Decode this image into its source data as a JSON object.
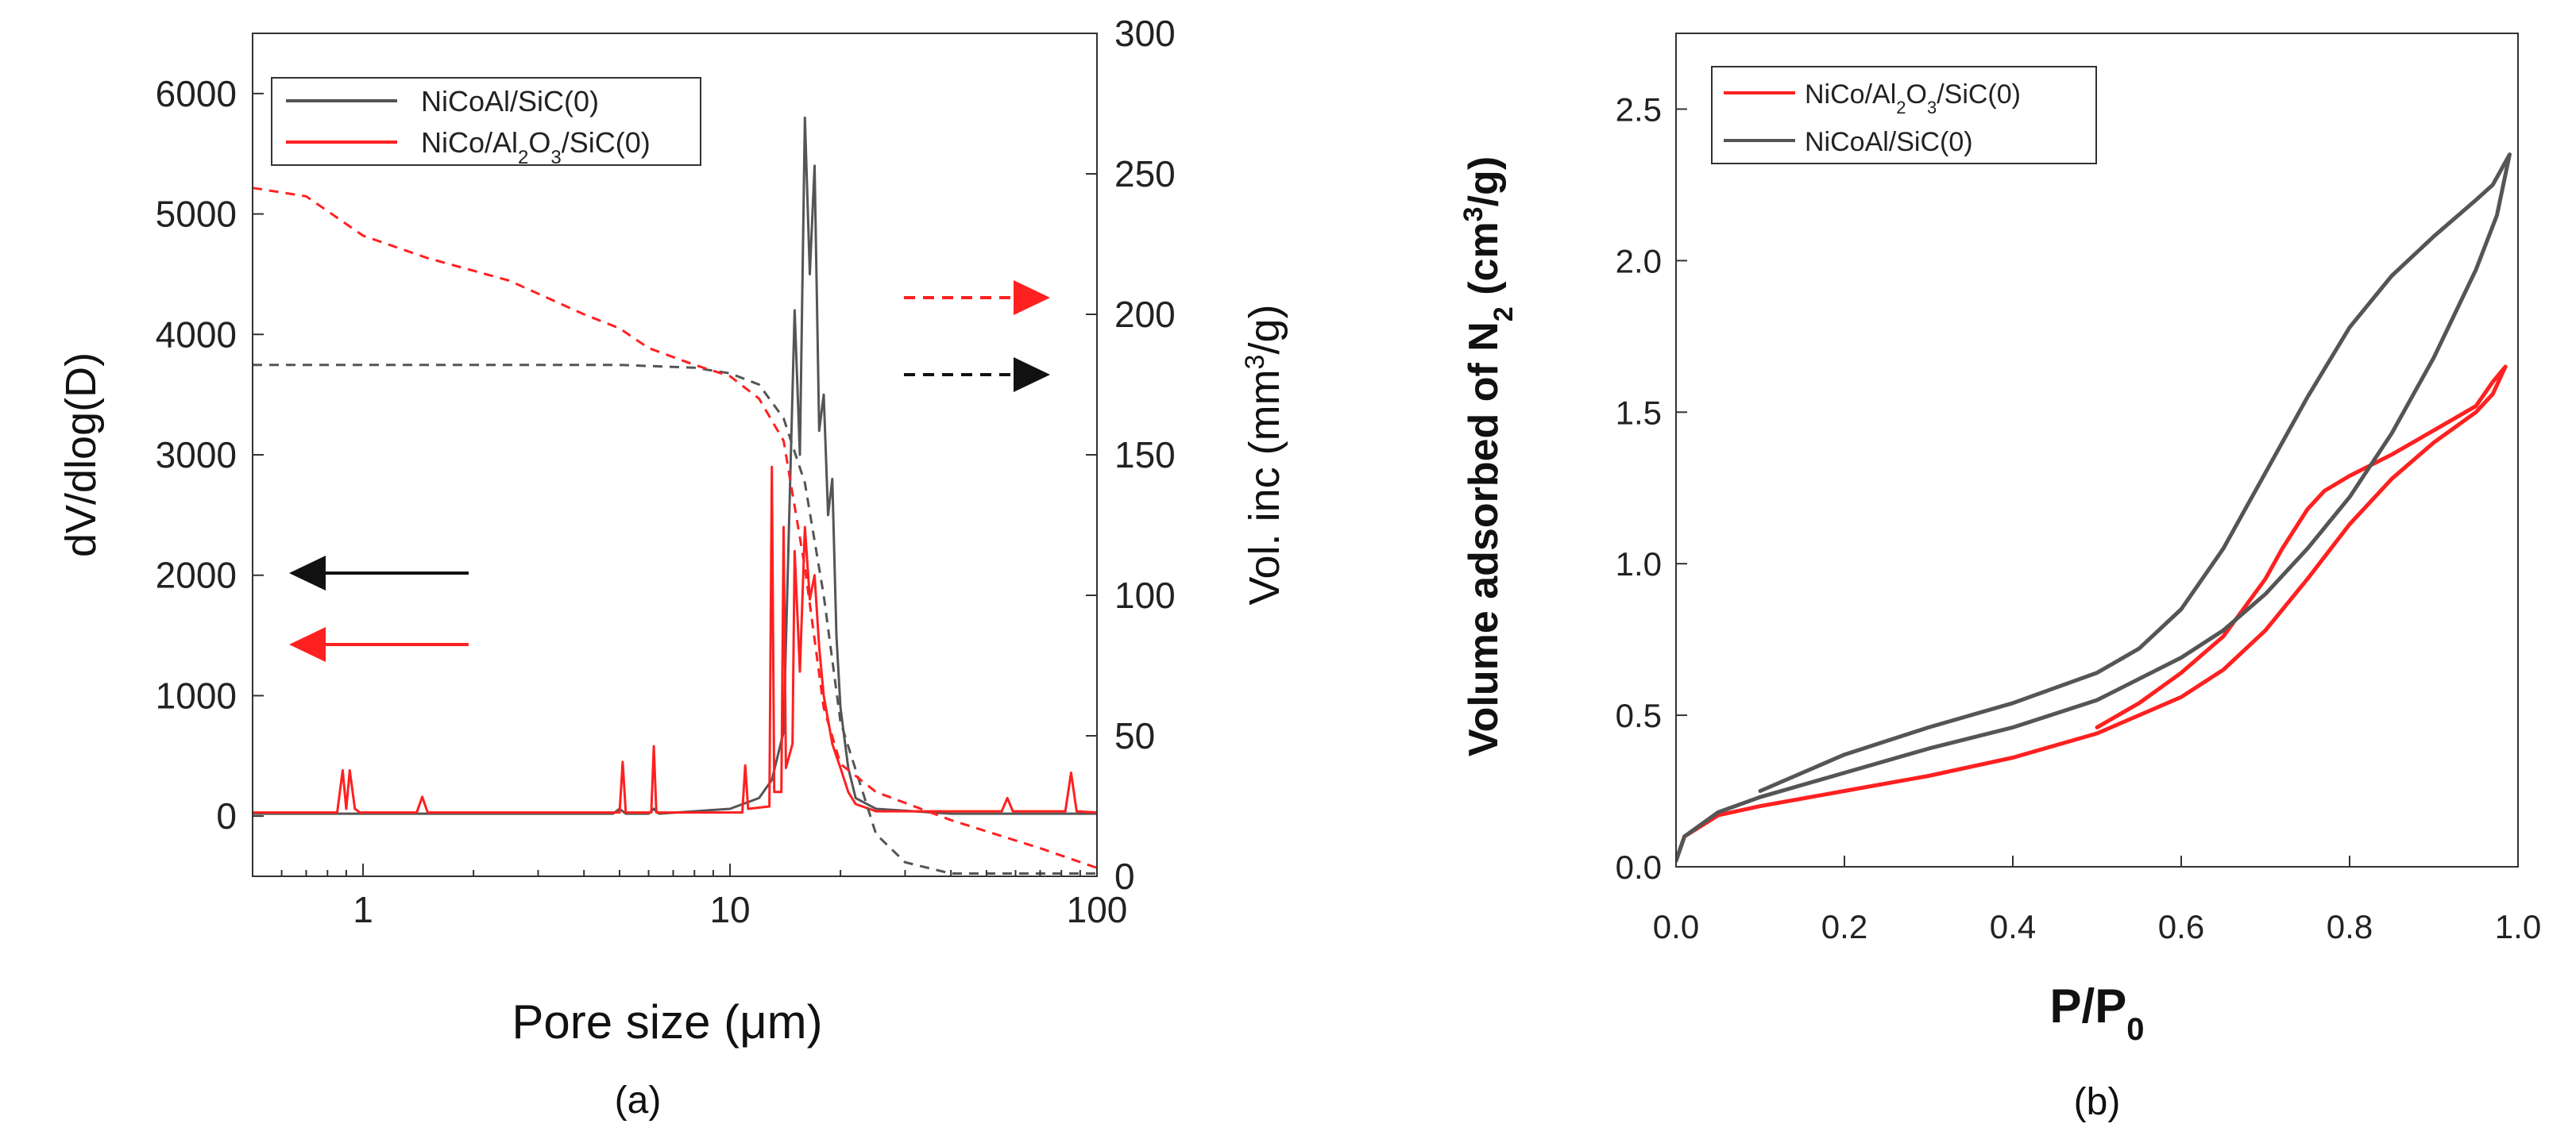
{
  "chart_data": [
    {
      "panel": "(a)",
      "type": "line",
      "xlabel": "Pore size (μm)",
      "ylabel": "dV/dlog(D)",
      "y2label": "Vol. inc (mm³/g)",
      "y2label_parts": [
        "Vol. inc (mm",
        "3",
        "/g)"
      ],
      "xscale": "log",
      "xlim": [
        0.5,
        100
      ],
      "ylim": [
        -500,
        6500
      ],
      "y2lim": [
        0,
        300
      ],
      "xticks": [
        1,
        10,
        100
      ],
      "xtick_labels": [
        "1",
        "10",
        "100"
      ],
      "yticks": [
        0,
        1000,
        2000,
        3000,
        4000,
        5000,
        6000
      ],
      "ytick_labels": [
        "0",
        "1000",
        "2000",
        "3000",
        "4000",
        "5000",
        "6000"
      ],
      "y2ticks": [
        0,
        50,
        100,
        150,
        200,
        250,
        300
      ],
      "y2tick_labels": [
        "0",
        "50",
        "100",
        "150",
        "200",
        "250",
        "300"
      ],
      "legend": {
        "position": "top-left",
        "entries": [
          {
            "label": "NiCoAl/SiC(0)",
            "color": "#555555"
          },
          {
            "label": "NiCo/Al2O3/SiC(0)",
            "color": "#ff2020",
            "parts": [
              "NiCo/Al",
              "2",
              "O",
              "3",
              "/SiC(0)"
            ]
          }
        ]
      },
      "annotations": [
        {
          "type": "arrow",
          "direction": "left",
          "color": "#111111",
          "meaning": "left axis",
          "series": "NiCoAl/SiC(0)"
        },
        {
          "type": "arrow",
          "direction": "left",
          "color": "#ff2020",
          "meaning": "left axis",
          "series": "NiCo/Al2O3/SiC(0)"
        },
        {
          "type": "arrow",
          "direction": "right",
          "style": "dashed",
          "color": "#ff2020",
          "meaning": "right axis",
          "series": "NiCo/Al2O3/SiC(0)"
        },
        {
          "type": "arrow",
          "direction": "right",
          "style": "dashed",
          "color": "#111111",
          "meaning": "right axis",
          "series": "NiCoAl/SiC(0)"
        }
      ],
      "series": [
        {
          "name": "NiCoAl/SiC(0)",
          "axis": "left",
          "color": "#555555",
          "style": "solid",
          "x": [
            0.5,
            4.8,
            5.0,
            5.2,
            6.0,
            6.2,
            6.4,
            10,
            12,
            13,
            14,
            15,
            15.5,
            16,
            16.5,
            17,
            17.5,
            18,
            18.5,
            19,
            19.5,
            20,
            21,
            22,
            25,
            40,
            100
          ],
          "y": [
            20,
            20,
            60,
            20,
            20,
            60,
            20,
            60,
            150,
            300,
            700,
            4200,
            3000,
            5800,
            4500,
            5400,
            3200,
            3500,
            2500,
            2800,
            1500,
            900,
            400,
            150,
            60,
            20,
            20
          ]
        },
        {
          "name": "NiCo/Al2O3/SiC(0)",
          "axis": "left",
          "color": "#ff2020",
          "style": "solid",
          "x": [
            0.5,
            0.85,
            0.88,
            0.9,
            0.92,
            0.95,
            0.98,
            1.4,
            1.45,
            1.5,
            5.0,
            5.1,
            5.2,
            6.1,
            6.2,
            6.3,
            10.8,
            11,
            11.2,
            12.8,
            13,
            13.2,
            13.8,
            14,
            14.2,
            14.8,
            15,
            15.5,
            16,
            16.5,
            17,
            17.5,
            18,
            19,
            20,
            21,
            22,
            25,
            55,
            57,
            59,
            82,
            85,
            88,
            100
          ],
          "y": [
            30,
            30,
            380,
            60,
            380,
            60,
            30,
            30,
            160,
            30,
            30,
            450,
            30,
            30,
            580,
            30,
            30,
            420,
            60,
            80,
            2900,
            200,
            200,
            2400,
            400,
            600,
            2200,
            1200,
            2400,
            1800,
            2000,
            1400,
            1000,
            600,
            400,
            200,
            100,
            40,
            40,
            150,
            40,
            40,
            360,
            40,
            30
          ]
        },
        {
          "name": "NiCoAl/SiC(0) cumulative",
          "axis": "right",
          "color": "#555555",
          "style": "dashed",
          "x": [
            0.5,
            5,
            8,
            10,
            12,
            14,
            16,
            18,
            20,
            25,
            30,
            40,
            100
          ],
          "y": [
            182,
            182,
            181,
            179,
            175,
            163,
            140,
            100,
            55,
            15,
            5,
            1,
            1
          ]
        },
        {
          "name": "NiCo/Al2O3/SiC(0) cumulative",
          "axis": "right",
          "color": "#ff2020",
          "style": "dashed",
          "x": [
            0.5,
            0.7,
            1.0,
            1.5,
            2.5,
            4,
            5,
            6,
            8,
            10,
            12,
            14,
            16,
            18,
            20,
            25,
            40,
            70,
            100
          ],
          "y": [
            245,
            242,
            228,
            220,
            212,
            200,
            195,
            188,
            182,
            178,
            170,
            155,
            110,
            60,
            40,
            30,
            20,
            10,
            3
          ]
        }
      ]
    },
    {
      "panel": "(b)",
      "type": "line",
      "xlabel": "P/P0",
      "xlabel_parts": [
        "P/P",
        "0"
      ],
      "ylabel": "Volume adsorbed of N2 (cm³/g)",
      "ylabel_parts": [
        "Volume adsorbed of N",
        "2",
        " (cm",
        "3",
        "/g)"
      ],
      "xlim": [
        0,
        1.0
      ],
      "ylim": [
        0,
        2.75
      ],
      "xticks": [
        0.0,
        0.2,
        0.4,
        0.6,
        0.8,
        1.0
      ],
      "xtick_labels": [
        "0.0",
        "0.2",
        "0.4",
        "0.6",
        "0.8",
        "1.0"
      ],
      "yticks": [
        0.0,
        0.5,
        1.0,
        1.5,
        2.0,
        2.5
      ],
      "ytick_labels": [
        "0.0",
        "0.5",
        "1.0",
        "1.5",
        "2.0",
        "2.5"
      ],
      "legend": {
        "position": "top-left",
        "entries": [
          {
            "label": "NiCo/Al2O3/SiC(0)",
            "color": "#ff2020",
            "parts": [
              "NiCo/Al",
              "2",
              "O",
              "3",
              "/SiC(0)"
            ]
          },
          {
            "label": "NiCoAl/SiC(0)",
            "color": "#555555"
          }
        ]
      },
      "series": [
        {
          "name": "NiCo/Al2O3/SiC(0) adsorption",
          "color": "#ff2020",
          "x": [
            0.0,
            0.01,
            0.05,
            0.1,
            0.2,
            0.3,
            0.4,
            0.5,
            0.6,
            0.65,
            0.7,
            0.75,
            0.8,
            0.85,
            0.9,
            0.95,
            0.97,
            0.985
          ],
          "y": [
            0.02,
            0.1,
            0.17,
            0.2,
            0.25,
            0.3,
            0.36,
            0.44,
            0.56,
            0.65,
            0.78,
            0.95,
            1.13,
            1.28,
            1.4,
            1.5,
            1.56,
            1.65
          ]
        },
        {
          "name": "NiCo/Al2O3/SiC(0) desorption",
          "color": "#ff2020",
          "x": [
            0.985,
            0.97,
            0.95,
            0.9,
            0.85,
            0.8,
            0.77,
            0.75,
            0.72,
            0.7,
            0.65,
            0.6,
            0.55,
            0.5
          ],
          "y": [
            1.65,
            1.6,
            1.52,
            1.44,
            1.36,
            1.29,
            1.24,
            1.18,
            1.05,
            0.95,
            0.76,
            0.64,
            0.54,
            0.46
          ]
        },
        {
          "name": "NiCoAl/SiC(0) adsorption",
          "color": "#555555",
          "x": [
            0.0,
            0.01,
            0.05,
            0.1,
            0.2,
            0.3,
            0.4,
            0.5,
            0.6,
            0.65,
            0.7,
            0.75,
            0.8,
            0.85,
            0.9,
            0.95,
            0.975,
            0.99
          ],
          "y": [
            0.02,
            0.1,
            0.18,
            0.23,
            0.31,
            0.39,
            0.46,
            0.55,
            0.69,
            0.78,
            0.9,
            1.05,
            1.22,
            1.43,
            1.68,
            1.97,
            2.15,
            2.35
          ]
        },
        {
          "name": "NiCoAl/SiC(0) desorption",
          "color": "#555555",
          "x": [
            0.99,
            0.97,
            0.95,
            0.9,
            0.85,
            0.8,
            0.75,
            0.7,
            0.65,
            0.6,
            0.55,
            0.5,
            0.45,
            0.4,
            0.3,
            0.2,
            0.1
          ],
          "y": [
            2.35,
            2.25,
            2.2,
            2.08,
            1.95,
            1.78,
            1.55,
            1.3,
            1.05,
            0.85,
            0.72,
            0.64,
            0.59,
            0.54,
            0.46,
            0.37,
            0.25
          ]
        }
      ]
    }
  ],
  "captions": {
    "a": "(a)",
    "b": "(b)"
  }
}
